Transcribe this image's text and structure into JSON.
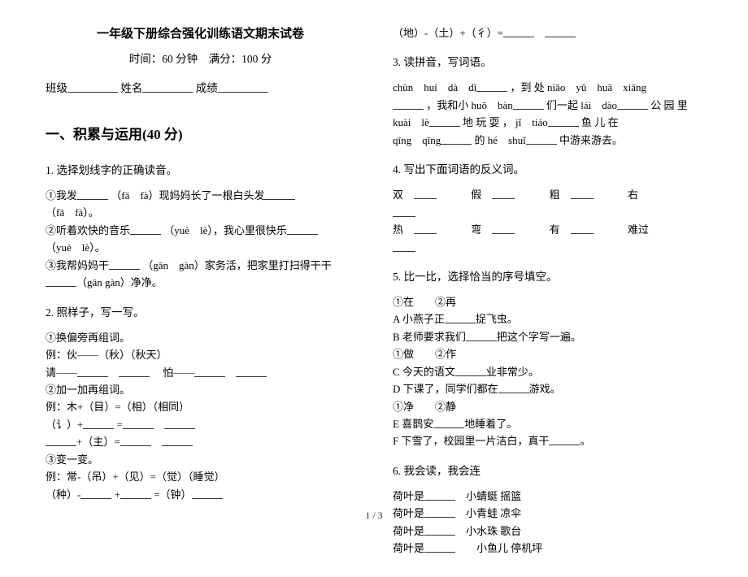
{
  "header": {
    "title": "一年级下册综合强化训练语文期末试卷",
    "time_score": "时间：60 分钟　满分：100 分",
    "class_label": "班级",
    "name_label": "姓名",
    "score_label": "成绩"
  },
  "section1": {
    "heading": "一、积累与运用(40 分)",
    "q1": {
      "title": "1.  选择划线字的正确读音。",
      "l1a": "①我发",
      "l1b": "（fā　fà）现妈妈长了一根白头发",
      "l1c": "（fā　fà）。",
      "l2a": "②听着欢快的音乐",
      "l2b": "（yuè　lè），我心里很快乐",
      "l2c": "（yuè　lè）。",
      "l3a": "③我帮妈妈干",
      "l3b": "（gān　gàn）家务活，把家里打扫得干干",
      "l3c": "（gān gàn）净净。"
    },
    "q2": {
      "title": "2.  照样子，写一写。",
      "p1": "①换偏旁再组词。",
      "p1ex": "例：伙——（秋）（秋天）",
      "p1a": "请——",
      "p1b": "怕——",
      "p2": "②加一加再组词。",
      "p2ex": "例：木+（目）=（相）（相同）",
      "p2a": "（讠）+",
      "p2b": "=",
      "p2c": "+（主）=",
      "p3": "③变一变。",
      "p3ex": "例：常-（吊）+（见）=（觉）（睡觉）",
      "p3a": "（种）-",
      "p3b": "+",
      "p3c": "=（钟）"
    }
  },
  "col2_top": {
    "l1": "（地）-（土）+（彳）=",
    "q3title": "3.  读拼音，写词语。",
    "p1a": "chūn　huí　dà　dì",
    "p1b": "，到 处 niǎo　yǔ　huā　xiāng",
    "p2a": "，我和小 huǒ　bàn",
    "p2b": "们一起 lái　dào",
    "p2c": "公 园 里",
    "p3a": "kuài　lè",
    "p3b": "地 玩 耍 ， jǐ　tiáo",
    "p3c": "鱼 儿 在",
    "p4a": "qīng　qīng",
    "p4b": "的 hé　shuǐ",
    "p4c": "中游来游去。",
    "q4title": "4.  写出下面词语的反义词。",
    "w1": "双",
    "w2": "假",
    "w3": "粗",
    "w4": "右",
    "w5": "热",
    "w6": "弯",
    "w7": "有",
    "w8": "难过",
    "q5title": "5.  比一比，选择恰当的序号填空。",
    "o1": "①在　　②再",
    "o1a": "A 小燕子正",
    "o1a2": "捉飞虫。",
    "o1b": "B 老师要求我们",
    "o1b2": "把这个字写一遍。",
    "o2": "①做　　②作",
    "o2a": "C 今天的语文",
    "o2a2": "业非常少。",
    "o2b": "D 下课了，同学们都在",
    "o2b2": "游戏。",
    "o3": "①净　　②静",
    "o3a": "E 喜鹊安",
    "o3a2": "地睡着了。",
    "o3b": "F 下雪了，校园里一片洁白，真干",
    "o3b2": "。",
    "q6title": "6.  我会读，我会连",
    "h1": "荷叶是",
    "h1b": "小蜻蜓  摇篮",
    "h2": "荷叶是",
    "h2b": "小青蛙  凉伞",
    "h3": "荷叶是",
    "h3b": "小水珠  歌台",
    "h4": "荷叶是",
    "h4b": "小鱼儿  停机坪"
  },
  "footer": "1 / 3"
}
